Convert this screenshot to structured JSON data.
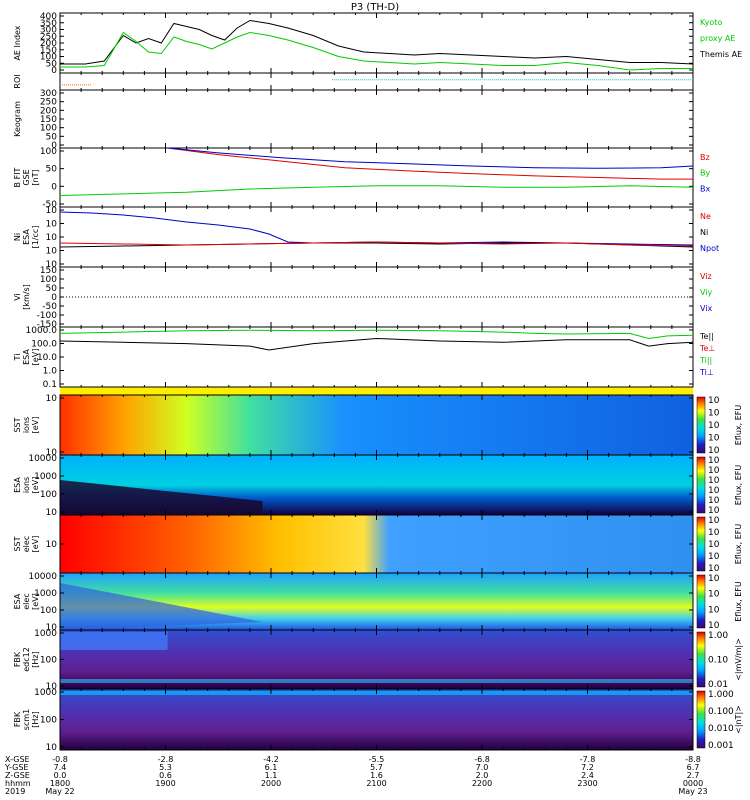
{
  "chart_data": {
    "type": "line",
    "title": "P3 (TH-D)",
    "colors": {
      "black": "#000000",
      "green": "#00cc00",
      "red": "#dd0000",
      "blue": "#0000cc",
      "orange": "#ff6600",
      "cyan": "#00cccc"
    },
    "time_axis": {
      "rows": [
        {
          "label": "X-GSE",
          "values": [
            "-0.8",
            "-2.8",
            "-4.2",
            "-5.5",
            "-6.8",
            "-7.8",
            "-8.8"
          ]
        },
        {
          "label": "Y-GSE",
          "values": [
            "7.4",
            "5.3",
            "6.1",
            "5.7",
            "7.0",
            "7.2",
            "6.7"
          ]
        },
        {
          "label": "Z-GSE",
          "values": [
            "0.0",
            "0.6",
            "1.1",
            "1.6",
            "2.0",
            "2.4",
            "2.7"
          ]
        },
        {
          "label": "hhmm",
          "values": [
            "1800",
            "1900",
            "2000",
            "2100",
            "2200",
            "2300",
            "0000"
          ]
        },
        {
          "label": "2019",
          "values": [
            "May 22",
            "",
            "",
            "",
            "",
            "",
            "May 23"
          ]
        }
      ]
    },
    "panels": [
      {
        "id": "ae",
        "ylabel": [
          "AE Index"
        ],
        "yticks": [
          "0",
          "50",
          "100",
          "150",
          "200",
          "250",
          "300",
          "350",
          "400"
        ],
        "ylim": [
          0,
          400
        ],
        "legend": [
          {
            "text": "Kyoto",
            "color": "#00cc00"
          },
          {
            "text": "proxy AE",
            "color": "#00cc00"
          },
          {
            "text": "Themis AE",
            "color": "#000000"
          }
        ],
        "series": [
          {
            "name": "Themis AE",
            "color": "#000000",
            "x": [
              0,
              0.04,
              0.07,
              0.1,
              0.12,
              0.14,
              0.16,
              0.18,
              0.2,
              0.22,
              0.24,
              0.26,
              0.28,
              0.3,
              0.33,
              0.36,
              0.4,
              0.44,
              0.48,
              0.52,
              0.56,
              0.6,
              0.65,
              0.7,
              0.75,
              0.8,
              0.85,
              0.9,
              0.95,
              1
            ],
            "y": [
              60,
              60,
              80,
              250,
              200,
              230,
              200,
              330,
              310,
              290,
              250,
              220,
              300,
              350,
              330,
              300,
              250,
              180,
              140,
              130,
              120,
              130,
              120,
              110,
              100,
              110,
              90,
              70,
              70,
              60
            ]
          },
          {
            "name": "Kyoto",
            "color": "#00cc00",
            "x": [
              0,
              0.04,
              0.07,
              0.1,
              0.12,
              0.14,
              0.16,
              0.18,
              0.2,
              0.22,
              0.24,
              0.26,
              0.28,
              0.3,
              0.33,
              0.36,
              0.4,
              0.44,
              0.48,
              0.52,
              0.56,
              0.6,
              0.65,
              0.7,
              0.75,
              0.8,
              0.85,
              0.9,
              0.95,
              1
            ],
            "y": [
              40,
              40,
              50,
              270,
              210,
              140,
              130,
              240,
              210,
              190,
              160,
              200,
              240,
              270,
              250,
              220,
              170,
              110,
              80,
              70,
              60,
              70,
              60,
              50,
              50,
              70,
              50,
              20,
              30,
              30
            ]
          }
        ]
      },
      {
        "id": "roi",
        "ylabel": [
          "ROI"
        ],
        "yticks": [],
        "ylim": [
          0,
          1
        ],
        "segments": [
          {
            "color": "#ff6600",
            "x0": 0.0,
            "x1": 0.05,
            "y": 0.3
          },
          {
            "color": "#00cccc",
            "x0": 0.43,
            "x1": 1.0,
            "y": 0.6
          }
        ]
      },
      {
        "id": "keogram",
        "ylabel": [
          "Keogram"
        ],
        "yticks": [
          "0",
          "50",
          "100",
          "150",
          "200",
          "250",
          "300"
        ],
        "ylim": [
          0,
          300
        ]
      },
      {
        "id": "bfield",
        "ylabel": [
          "B FIT",
          "GSE",
          "[nT]"
        ],
        "yticks": [
          "-50",
          "0",
          "50",
          "100"
        ],
        "ylim": [
          -80,
          100
        ],
        "legend": [
          {
            "text": "Bz",
            "color": "#dd0000"
          },
          {
            "text": "By",
            "color": "#00cc00"
          },
          {
            "text": "Bx",
            "color": "#0000cc"
          }
        ],
        "series": [
          {
            "name": "Bz",
            "color": "#dd0000",
            "x": [
              0.17,
              0.25,
              0.35,
              0.45,
              0.55,
              0.65,
              0.75,
              0.85,
              0.95,
              1
            ],
            "y": [
              100,
              80,
              60,
              40,
              30,
              22,
              15,
              10,
              5,
              5
            ]
          },
          {
            "name": "By",
            "color": "#00cc00",
            "x": [
              0,
              0.1,
              0.2,
              0.3,
              0.4,
              0.5,
              0.6,
              0.7,
              0.8,
              0.9,
              1
            ],
            "y": [
              -45,
              -40,
              -35,
              -25,
              -20,
              -15,
              -15,
              -20,
              -20,
              -15,
              -20
            ]
          },
          {
            "name": "Bx",
            "color": "#0000cc",
            "x": [
              0.17,
              0.25,
              0.35,
              0.45,
              0.55,
              0.65,
              0.75,
              0.85,
              0.95,
              1
            ],
            "y": [
              100,
              85,
              70,
              58,
              52,
              45,
              40,
              38,
              40,
              45
            ]
          }
        ]
      },
      {
        "id": "density",
        "ylabel": [
          "Ni",
          "ESA",
          "[1/cc]"
        ],
        "yticks": [
          "10",
          "10",
          "10",
          "10",
          "10"
        ],
        "ylim": [
          -3,
          3
        ],
        "legend": [
          {
            "text": "Ne",
            "color": "#dd0000"
          },
          {
            "text": "Ni",
            "color": "#000000"
          },
          {
            "text": "Npot",
            "color": "#0000cc"
          }
        ],
        "series": [
          {
            "name": "Npot",
            "color": "#0000cc",
            "x": [
              0,
              0.05,
              0.1,
              0.15,
              0.2,
              0.25,
              0.3,
              0.33,
              0.36,
              0.4,
              0.5,
              0.6,
              0.7,
              0.8,
              0.9,
              1
            ],
            "y": [
              2.5,
              2.4,
              2.2,
              1.9,
              1.5,
              1.2,
              0.8,
              0.3,
              -0.5,
              -0.6,
              -0.5,
              -0.6,
              -0.5,
              -0.6,
              -0.7,
              -0.8
            ]
          },
          {
            "name": "Ni",
            "color": "#000000",
            "x": [
              0,
              0.1,
              0.2,
              0.3,
              0.4,
              0.5,
              0.6,
              0.7,
              0.8,
              0.9,
              1
            ],
            "y": [
              -1.0,
              -0.9,
              -0.8,
              -0.7,
              -0.6,
              -0.6,
              -0.7,
              -0.6,
              -0.6,
              -0.8,
              -1.0
            ]
          },
          {
            "name": "Ne",
            "color": "#dd0000",
            "x": [
              0,
              0.1,
              0.2,
              0.3,
              0.4,
              0.5,
              0.6,
              0.7,
              0.8,
              0.9,
              1
            ],
            "y": [
              -0.6,
              -0.7,
              -0.8,
              -0.7,
              -0.6,
              -0.5,
              -0.6,
              -0.7,
              -0.6,
              -0.8,
              -0.9
            ]
          }
        ]
      },
      {
        "id": "velocity",
        "ylabel": [
          "Vi",
          "[km/s]"
        ],
        "yticks": [
          "-150",
          "-100",
          "-50",
          "0",
          "50",
          "100",
          "150"
        ],
        "ylim": [
          -170,
          170
        ],
        "legend": [
          {
            "text": "Viz",
            "color": "#dd0000"
          },
          {
            "text": "Viy",
            "color": "#00cc00"
          },
          {
            "text": "Vix",
            "color": "#0000cc"
          }
        ]
      },
      {
        "id": "temperature",
        "ylabel": [
          "Ti",
          "ESA",
          "[eV]"
        ],
        "yticks": [
          "0.1",
          "1.0",
          "10.0",
          "100.0",
          "1000.0"
        ],
        "ylim": [
          -1.2,
          3.5
        ],
        "legend": [
          {
            "text": "Te||",
            "color": "#000000"
          },
          {
            "text": "Te⊥",
            "color": "#dd0000"
          },
          {
            "text": "Ti||",
            "color": "#00cc00"
          },
          {
            "text": "Ti⊥",
            "color": "#0000cc"
          }
        ],
        "series": [
          {
            "name": "Ti||",
            "color": "#00cc00",
            "x": [
              0,
              0.1,
              0.2,
              0.3,
              0.4,
              0.5,
              0.6,
              0.7,
              0.75,
              0.8,
              0.9,
              0.93,
              0.96,
              1
            ],
            "y": [
              3.0,
              3.1,
              3.2,
              3.25,
              3.2,
              3.25,
              3.2,
              3.1,
              3.0,
              2.95,
              3.0,
              2.6,
              2.8,
              2.85
            ]
          },
          {
            "name": "Te||",
            "color": "#000000",
            "x": [
              0,
              0.1,
              0.2,
              0.3,
              0.33,
              0.4,
              0.5,
              0.6,
              0.7,
              0.8,
              0.9,
              0.93,
              0.96,
              1
            ],
            "y": [
              2.4,
              2.3,
              2.2,
              2.0,
              1.7,
              2.2,
              2.6,
              2.4,
              2.3,
              2.5,
              2.5,
              2.0,
              2.2,
              2.3
            ]
          }
        ]
      },
      {
        "id": "sst1",
        "ylabel": [
          "SST",
          "ions",
          "[eV]"
        ],
        "yticks": [
          "10",
          "10"
        ],
        "cbar_label": "Eflux, EFU",
        "cbar_ticks": [
          "10",
          "10",
          "10",
          "10",
          "10"
        ]
      },
      {
        "id": "esa1",
        "ylabel": [
          "ESA",
          "ions",
          "[eV]"
        ],
        "yticks": [
          "10",
          "100",
          "1000",
          "10000"
        ],
        "cbar_label": "Eflux, EFU",
        "cbar_ticks": [
          "10",
          "10",
          "10",
          "10",
          "10",
          "10"
        ]
      },
      {
        "id": "sst2",
        "ylabel": [
          "SST",
          "elec",
          "[eV]"
        ],
        "yticks": [
          "10"
        ],
        "cbar_label": "Eflux, EFU",
        "cbar_ticks": [
          "10",
          "10",
          "10",
          "10",
          "10"
        ]
      },
      {
        "id": "esa2",
        "ylabel": [
          "ESA",
          "elec",
          "[eV]"
        ],
        "yticks": [
          "10",
          "100",
          "1000",
          "10000"
        ],
        "cbar_label": "Eflux, EFU",
        "cbar_ticks": [
          "10",
          "10",
          "10",
          "10"
        ]
      },
      {
        "id": "fbk1",
        "ylabel": [
          "FBK",
          "edc12",
          "[Hz]"
        ],
        "yticks": [
          "10",
          "100",
          "1000"
        ],
        "cbar_label": "<|mV/m|>",
        "cbar_ticks": [
          "0.01",
          "0.10",
          "1.00"
        ]
      },
      {
        "id": "fbk2",
        "ylabel": [
          "FBK",
          "scm1",
          "[Hz]"
        ],
        "yticks": [
          "10",
          "100",
          "1000"
        ],
        "cbar_label": "<|nT|>",
        "cbar_ticks": [
          "0.001",
          "0.010",
          "0.100",
          "1.000"
        ]
      }
    ]
  }
}
